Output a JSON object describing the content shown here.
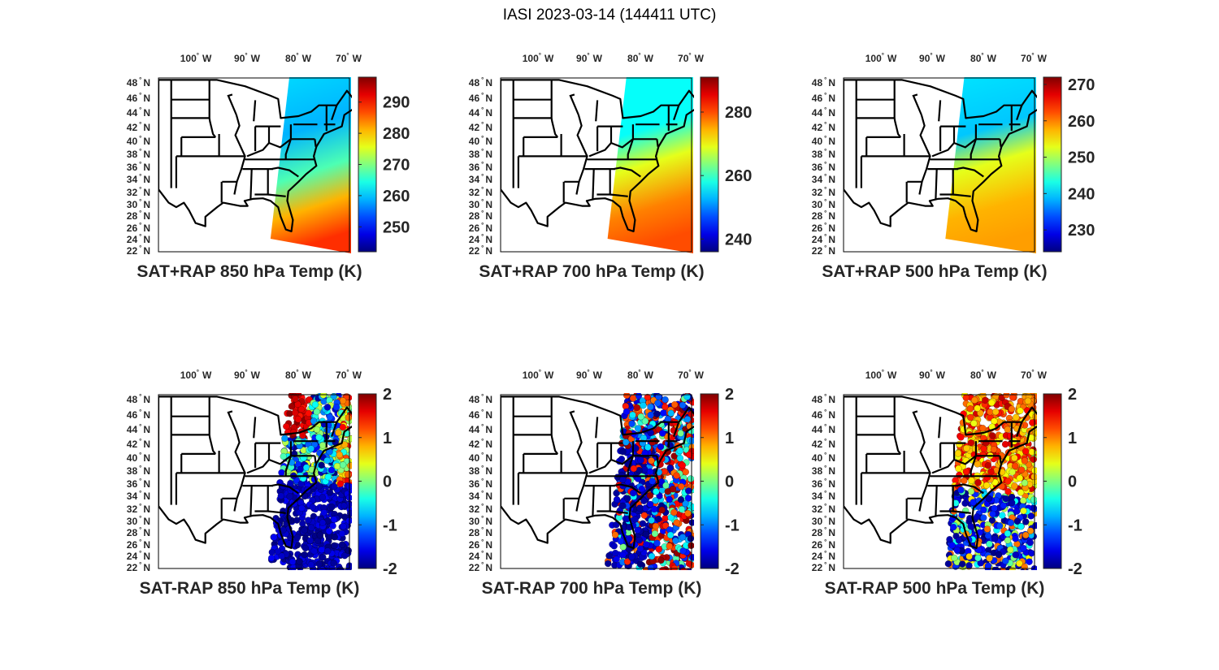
{
  "figure_title": "IASI 2023-03-14 (144411 UTC)",
  "lon_labels": [
    "100",
    "90",
    "80",
    "70"
  ],
  "lon_suffix": "W",
  "lat_labels": [
    "48",
    "46",
    "44",
    "42",
    "40",
    "38",
    "36",
    "34",
    "32",
    "30",
    "28",
    "26",
    "24",
    "22"
  ],
  "lat_suffix": "N",
  "degree_symbol": "°",
  "panels": [
    {
      "title": "SAT+RAP 850 hPa Temp (K)",
      "kind": "total",
      "clim": [
        242,
        298
      ],
      "ticks": [
        "250",
        "260",
        "270",
        "280",
        "290"
      ],
      "tickvals": [
        250,
        260,
        270,
        280,
        290
      ]
    },
    {
      "title": "SAT+RAP 700 hPa Temp (K)",
      "kind": "total",
      "clim": [
        236,
        291
      ],
      "ticks": [
        "240",
        "260",
        "280"
      ],
      "tickvals": [
        240,
        260,
        280
      ]
    },
    {
      "title": "SAT+RAP 500 hPa Temp (K)",
      "kind": "total",
      "clim": [
        224,
        272
      ],
      "ticks": [
        "230",
        "240",
        "250",
        "260",
        "270"
      ],
      "tickvals": [
        230,
        240,
        250,
        260,
        270
      ]
    },
    {
      "title": "SAT-RAP 850 hPa Temp (K)",
      "kind": "diff",
      "clim": [
        -2,
        2
      ],
      "ticks": [
        "-2",
        "-1",
        "0",
        "1",
        "2"
      ],
      "tickvals": [
        -2,
        -1,
        0,
        1,
        2
      ]
    },
    {
      "title": "SAT-RAP 700 hPa Temp (K)",
      "kind": "diff",
      "clim": [
        -2,
        2
      ],
      "ticks": [
        "-2",
        "-1",
        "0",
        "1",
        "2"
      ],
      "tickvals": [
        -2,
        -1,
        0,
        1,
        2
      ]
    },
    {
      "title": "SAT-RAP 500 hPa Temp (K)",
      "kind": "diff",
      "clim": [
        -2,
        2
      ],
      "ticks": [
        "-2",
        "-1",
        "0",
        "1",
        "2"
      ],
      "tickvals": [
        -2,
        -1,
        0,
        1,
        2
      ]
    }
  ]
}
